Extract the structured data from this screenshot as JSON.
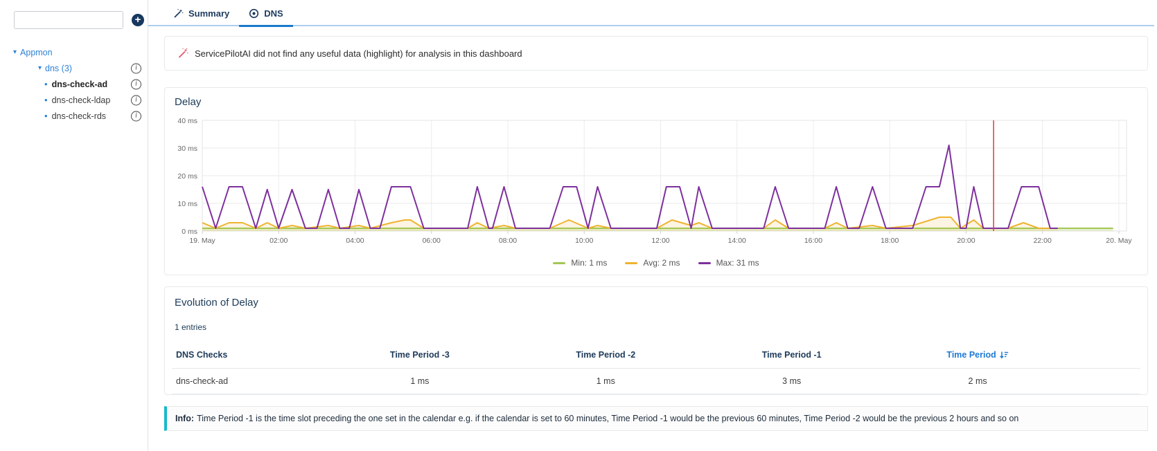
{
  "sidebar": {
    "search": {
      "value": "",
      "placeholder": ""
    },
    "tree": {
      "root_label": "Appmon",
      "group_label": "dns (3)",
      "items": [
        {
          "label": "dns-check-ad",
          "selected": true
        },
        {
          "label": "dns-check-ldap",
          "selected": false
        },
        {
          "label": "dns-check-rds",
          "selected": false
        }
      ]
    }
  },
  "tabs": {
    "summary_label": "Summary",
    "dns_label": "DNS"
  },
  "ai_banner": {
    "text": "ServicePilotAI did not find any useful data (highlight) for analysis in this dashboard"
  },
  "delay_panel": {
    "title": "Delay"
  },
  "chart_data": {
    "type": "line",
    "title": "Delay",
    "xlabel": "",
    "ylabel": "",
    "x_axis": {
      "unit": "hours since 19 May 00:00",
      "domain_hours": [
        0,
        24.2
      ],
      "ticks": [
        {
          "t": 0,
          "label": "19. May"
        },
        {
          "t": 2,
          "label": "02:00"
        },
        {
          "t": 4,
          "label": "04:00"
        },
        {
          "t": 6,
          "label": "06:00"
        },
        {
          "t": 8,
          "label": "08:00"
        },
        {
          "t": 10,
          "label": "10:00"
        },
        {
          "t": 12,
          "label": "12:00"
        },
        {
          "t": 14,
          "label": "14:00"
        },
        {
          "t": 16,
          "label": "16:00"
        },
        {
          "t": 18,
          "label": "18:00"
        },
        {
          "t": 20,
          "label": "20:00"
        },
        {
          "t": 22,
          "label": "22:00"
        },
        {
          "t": 24,
          "label": "20. May"
        }
      ]
    },
    "y_axis": {
      "min": 0,
      "max": 40,
      "ticks": [
        {
          "v": 0,
          "label": "0 ms"
        },
        {
          "v": 10,
          "label": "10 ms"
        },
        {
          "v": 20,
          "label": "20 ms"
        },
        {
          "v": 30,
          "label": "30 ms"
        },
        {
          "v": 40,
          "label": "40 ms"
        }
      ]
    },
    "plotline_x": 20.72,
    "plotline_color": "#e03a3a",
    "legend_position": "bottom-center",
    "series": [
      {
        "name": "Min: 1 ms",
        "color": "#a3c653",
        "fill": "rgba(163,198,83,0.25)",
        "points": [
          [
            0,
            1
          ],
          [
            23.85,
            1
          ]
        ]
      },
      {
        "name": "Avg: 2 ms",
        "color": "#efb32f",
        "fill": "rgba(239,179,47,0.14)",
        "points": [
          [
            0,
            3
          ],
          [
            0.35,
            1
          ],
          [
            0.7,
            3
          ],
          [
            1.05,
            3
          ],
          [
            1.4,
            1
          ],
          [
            1.7,
            3
          ],
          [
            2.0,
            1
          ],
          [
            2.35,
            2
          ],
          [
            2.7,
            1
          ],
          [
            3.3,
            2
          ],
          [
            3.6,
            1
          ],
          [
            4.1,
            2
          ],
          [
            4.4,
            1
          ],
          [
            4.95,
            3
          ],
          [
            5.3,
            4
          ],
          [
            5.45,
            4
          ],
          [
            5.8,
            1
          ],
          [
            6.95,
            1
          ],
          [
            7.2,
            3
          ],
          [
            7.5,
            1
          ],
          [
            7.9,
            2
          ],
          [
            8.2,
            1
          ],
          [
            9.1,
            1
          ],
          [
            9.6,
            4
          ],
          [
            10.1,
            1
          ],
          [
            10.35,
            2
          ],
          [
            10.7,
            1
          ],
          [
            11.9,
            1
          ],
          [
            12.3,
            4
          ],
          [
            12.8,
            2
          ],
          [
            13.0,
            3
          ],
          [
            13.35,
            1
          ],
          [
            14.7,
            1
          ],
          [
            15.0,
            4
          ],
          [
            15.35,
            1
          ],
          [
            16.3,
            1
          ],
          [
            16.6,
            3
          ],
          [
            16.9,
            1
          ],
          [
            17.55,
            2
          ],
          [
            17.9,
            1
          ],
          [
            18.6,
            2
          ],
          [
            19.3,
            5
          ],
          [
            19.6,
            5
          ],
          [
            19.85,
            1
          ],
          [
            20.2,
            4
          ],
          [
            20.45,
            1
          ],
          [
            21.1,
            1
          ],
          [
            21.5,
            3
          ],
          [
            21.9,
            1
          ],
          [
            22.4,
            1
          ]
        ]
      },
      {
        "name": "Max: 31 ms",
        "color": "#7d2f9d",
        "fill": null,
        "points": [
          [
            0,
            16
          ],
          [
            0.35,
            1
          ],
          [
            0.7,
            16
          ],
          [
            1.05,
            16
          ],
          [
            1.4,
            1
          ],
          [
            1.7,
            15
          ],
          [
            2.0,
            1
          ],
          [
            2.35,
            15
          ],
          [
            2.7,
            1
          ],
          [
            3.0,
            1
          ],
          [
            3.3,
            15
          ],
          [
            3.6,
            1
          ],
          [
            3.85,
            1
          ],
          [
            4.1,
            15
          ],
          [
            4.4,
            1
          ],
          [
            4.65,
            1
          ],
          [
            4.95,
            16
          ],
          [
            5.45,
            16
          ],
          [
            5.8,
            1
          ],
          [
            6.95,
            1
          ],
          [
            7.2,
            16
          ],
          [
            7.5,
            1
          ],
          [
            7.6,
            1
          ],
          [
            7.9,
            16
          ],
          [
            8.2,
            1
          ],
          [
            9.1,
            1
          ],
          [
            9.45,
            16
          ],
          [
            9.8,
            16
          ],
          [
            10.1,
            1
          ],
          [
            10.35,
            16
          ],
          [
            10.7,
            1
          ],
          [
            11.9,
            1
          ],
          [
            12.15,
            16
          ],
          [
            12.5,
            16
          ],
          [
            12.8,
            1
          ],
          [
            13.0,
            16
          ],
          [
            13.35,
            1
          ],
          [
            14.7,
            1
          ],
          [
            15.0,
            16
          ],
          [
            15.35,
            1
          ],
          [
            16.3,
            1
          ],
          [
            16.6,
            16
          ],
          [
            16.9,
            1
          ],
          [
            17.2,
            1
          ],
          [
            17.55,
            16
          ],
          [
            17.9,
            1
          ],
          [
            18.6,
            1
          ],
          [
            18.95,
            16
          ],
          [
            19.3,
            16
          ],
          [
            19.55,
            31
          ],
          [
            19.85,
            1
          ],
          [
            20.0,
            1
          ],
          [
            20.2,
            16
          ],
          [
            20.45,
            1
          ],
          [
            21.1,
            1
          ],
          [
            21.45,
            16
          ],
          [
            21.9,
            16
          ],
          [
            22.2,
            1
          ],
          [
            22.4,
            1
          ]
        ]
      }
    ]
  },
  "evolution_panel": {
    "title": "Evolution of Delay",
    "entries_text": "1 entries",
    "table": {
      "columns": [
        {
          "label": "DNS Checks",
          "align": "left",
          "sorted": false
        },
        {
          "label": "Time Period -3",
          "align": "center",
          "sorted": false
        },
        {
          "label": "Time Period -2",
          "align": "center",
          "sorted": false
        },
        {
          "label": "Time Period -1",
          "align": "center",
          "sorted": false
        },
        {
          "label": "Time Period",
          "align": "center",
          "sorted": true,
          "sort_direction": "desc"
        }
      ],
      "rows": [
        [
          "dns-check-ad",
          "1 ms",
          "1 ms",
          "3 ms",
          "2 ms"
        ]
      ]
    }
  },
  "info_bar": {
    "label": "Info:",
    "text": "Time Period -1 is the time slot preceding the one set in the calendar e.g. if the calendar is set to 60 minutes, Time Period -1 would be the previous 60 minutes, Time Period -2 would be the previous 2 hours and so on"
  },
  "colors": {
    "accent_blue": "#1878cc",
    "navy_text": "#1e3a5f",
    "link_blue": "#2e82d6",
    "tab_divider": "#abcdec",
    "card_border": "#e7e9ec",
    "grid": "#ececec",
    "tick_text": "#666666",
    "min_green": "#a3c653",
    "avg_yellow": "#efb32f",
    "max_purple": "#7d2f9d",
    "red_plotline": "#e03a3a",
    "info_teal": "#17b9cb",
    "ai_icon_pink": "#e0566c"
  }
}
